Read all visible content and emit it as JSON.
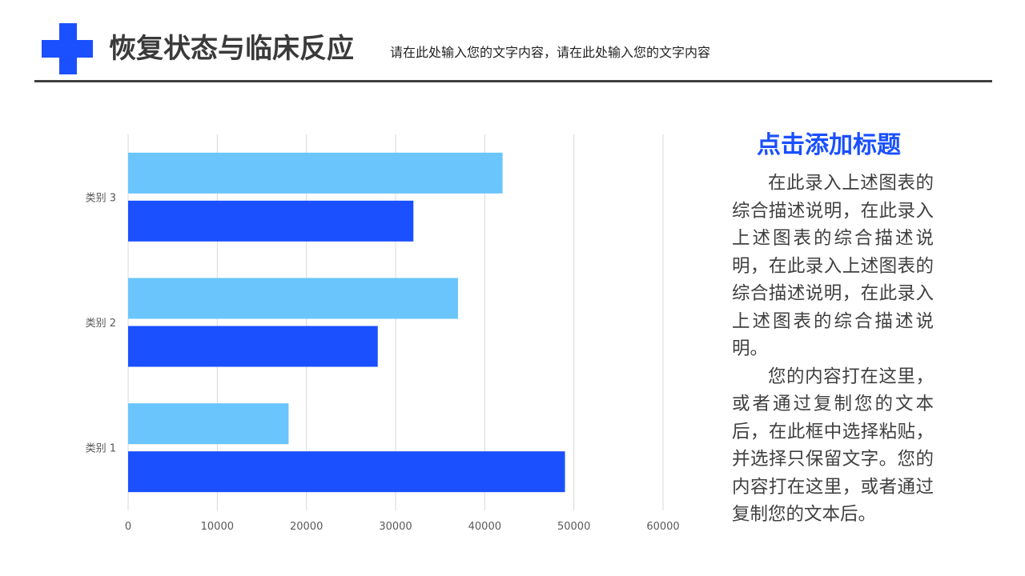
{
  "header": {
    "title": "恢复状态与临床反应",
    "subtitle": "请在此处输入您的文字内容，请在此处输入您的文字内容"
  },
  "sidebar": {
    "heading": "点击添加标题",
    "paragraphs": [
      "在此录入上述图表的综合描述说明，在此录入上述图表的综合描述说明，在此录入上述图表的综合描述说明，在此录入上述图表的综合描述说明。",
      "您的内容打在这里，或者通过复制您的文本后，在此框中选择粘贴，并选择只保留文字。您的内容打在这里，或者通过复制您的文本后。"
    ]
  },
  "colors": {
    "accent": "#1a50ff",
    "series_light": "#69c5fb",
    "series_dark": "#1a50ff",
    "grid": "#d9d9d9",
    "tick_text": "#595959"
  },
  "chart_data": {
    "type": "bar",
    "orientation": "horizontal",
    "categories": [
      "类别 1",
      "类别 2",
      "类别 3"
    ],
    "series": [
      {
        "values": [
          49000,
          28000,
          32000
        ]
      },
      {
        "values": [
          18000,
          37000,
          42000
        ]
      }
    ],
    "xlim": [
      0,
      60000
    ],
    "xticks": [
      0,
      10000,
      20000,
      30000,
      40000,
      50000,
      60000
    ],
    "grid": "vertical",
    "legend": "none"
  }
}
